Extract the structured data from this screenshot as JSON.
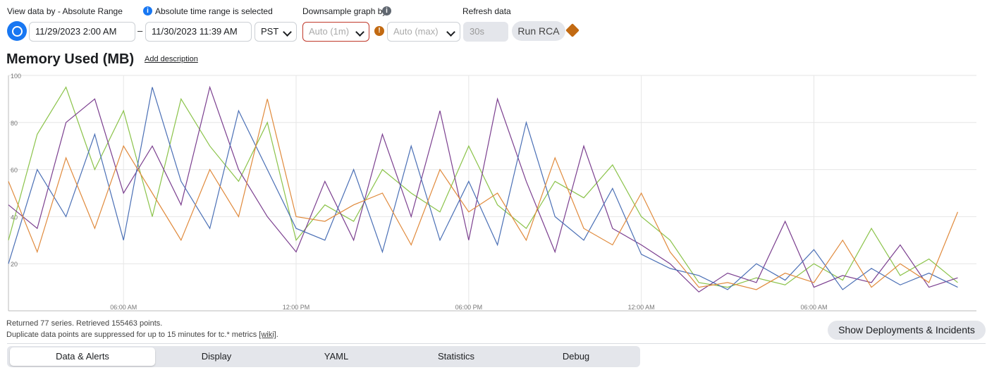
{
  "controls": {
    "view_label": "View data by - Absolute Range",
    "info_label": "Absolute time range is selected",
    "downsample_label": "Downsample graph by",
    "refresh_label": "Refresh data",
    "start": "11/29/2023 2:00 AM",
    "dash": "–",
    "end": "11/30/2023 11:39 AM",
    "timezone": "PST",
    "downsample": "Auto (1m)",
    "aggregation": "Auto (max)",
    "refresh": "30s",
    "run": "Run RCA"
  },
  "chart_data": {
    "type": "line",
    "title": "Memory Used (MB)",
    "link": "Add description",
    "x": [
      2,
      3,
      4,
      5,
      6,
      7,
      8,
      9,
      10,
      11,
      12,
      13,
      14,
      15,
      16,
      17,
      18,
      19,
      20,
      21,
      22,
      23,
      24,
      25,
      26,
      27,
      28,
      29,
      30,
      31,
      32,
      33,
      34,
      35
    ],
    "xlim": [
      2,
      35.65
    ],
    "xticks": [
      {
        "value": 6,
        "label": "06:00 AM"
      },
      {
        "value": 12,
        "label": "12:00 PM"
      },
      {
        "value": 18,
        "label": "06:00 PM"
      },
      {
        "value": 24,
        "label": "12:00 AM"
      },
      {
        "value": 30,
        "label": "06:00 AM"
      }
    ],
    "ylim": [
      0,
      100
    ],
    "yticks": [
      20,
      40,
      60,
      80,
      100
    ],
    "grid": true,
    "series": [
      {
        "color": "#8bc34a",
        "values": [
          30,
          75,
          95,
          60,
          85,
          40,
          90,
          70,
          55,
          80,
          30,
          45,
          38,
          60,
          50,
          42,
          70,
          45,
          35,
          55,
          48,
          62,
          40,
          30,
          12,
          10,
          14,
          11,
          20,
          13,
          35,
          15,
          22,
          12
        ]
      },
      {
        "color": "#7b3f8f",
        "values": [
          45,
          35,
          80,
          90,
          50,
          70,
          45,
          95,
          60,
          40,
          25,
          55,
          30,
          75,
          40,
          85,
          30,
          90,
          55,
          25,
          70,
          35,
          28,
          20,
          8,
          16,
          12,
          38,
          10,
          15,
          12,
          28,
          10,
          14
        ]
      },
      {
        "color": "#4a6fb5",
        "values": [
          20,
          60,
          40,
          75,
          30,
          95,
          55,
          35,
          85,
          60,
          35,
          30,
          60,
          25,
          70,
          30,
          55,
          28,
          80,
          40,
          30,
          52,
          24,
          18,
          15,
          9,
          20,
          13,
          26,
          9,
          18,
          11,
          16,
          10
        ]
      },
      {
        "color": "#e08a3c",
        "values": [
          55,
          25,
          65,
          35,
          70,
          50,
          30,
          60,
          40,
          90,
          40,
          38,
          45,
          50,
          28,
          60,
          42,
          50,
          30,
          65,
          35,
          28,
          50,
          25,
          10,
          12,
          9,
          16,
          12,
          30,
          10,
          20,
          12,
          42
        ]
      }
    ]
  },
  "footer": {
    "returned": "Returned 77 series. Retrieved 155463 points.",
    "duplicate": "Duplicate data points are suppressed for up to 15 minutes for tc.* metrics",
    "wiki": "[wiki]",
    "period": ".",
    "button": "Show Deployments & Incidents"
  },
  "tabs": [
    "Data & Alerts",
    "Display",
    "YAML",
    "Statistics",
    "Debug"
  ]
}
